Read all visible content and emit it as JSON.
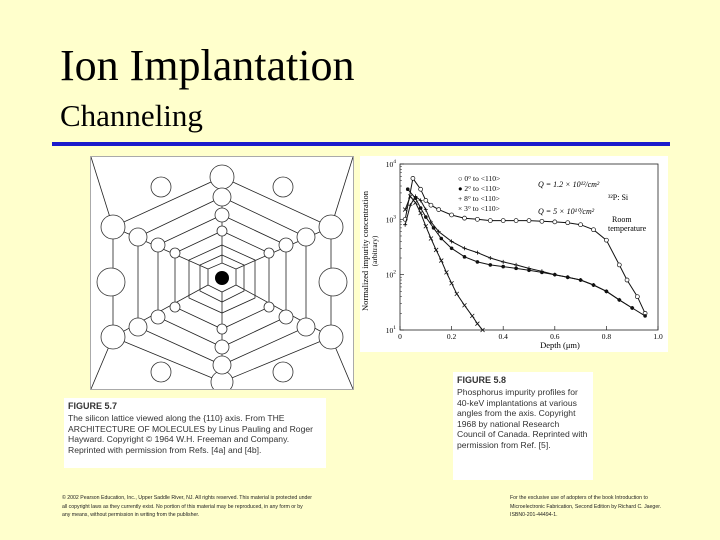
{
  "slide": {
    "title": "Ion Implantation",
    "subtitle": "Channeling"
  },
  "figure57": {
    "heading": "FIGURE 5.7",
    "caption": "The silicon lattice viewed along the {110} axis. From THE ARCHITECTURE OF MOLECULES by Linus Pauling and Roger Hayward. Copyright © 1964 W.H. Freeman and Company. Reprinted with permission from Refs. [4a] and [4b]."
  },
  "figure58": {
    "heading": "FIGURE 5.8",
    "caption": "Phosphorus impurity profiles for 40-keV implantations at various angles from the axis. Copyright 1968 by national Research Council of Canada. Reprinted with permission from Ref. [5]."
  },
  "footer": {
    "left": "© 2002 Pearson Education, Inc., Upper Saddle River, NJ. All rights reserved. This material is protected under all copyright laws as they currently exist. No portion of this material may be reproduced, in any form or by any means, without permission in writing from the publisher.",
    "right": "For the exclusive use of adopters of the book Introduction to Microelectronic Fabrication, Second Edition by Richard C. Jaeger. ISBN0-201-44494-1."
  },
  "chart_data": {
    "type": "line",
    "title": "",
    "xlabel": "Depth (μm)",
    "ylabel": "Normalized impurity concentration",
    "ylabel_units": "(arbitrary)",
    "xlim": [
      0,
      1.0
    ],
    "ylim_log10": [
      1,
      4
    ],
    "x_ticks": [
      "0",
      "0.2",
      "0.4",
      "0.6",
      "0.8",
      "1.0"
    ],
    "y_ticks": [
      {
        "base": "10",
        "exp": "4"
      },
      {
        "base": "10",
        "exp": "3"
      },
      {
        "base": "10",
        "exp": "2"
      },
      {
        "base": "10",
        "exp": "1"
      }
    ],
    "legend": [
      {
        "marker": "○",
        "text": "0° to <110>"
      },
      {
        "marker": "●",
        "text": "2° to <110>"
      },
      {
        "marker": "+",
        "text": "8° to <110>"
      },
      {
        "marker": "×",
        "text": "3° to <110>"
      }
    ],
    "annotations": {
      "dose_high": "Q = 1.2 × 10¹²/cm²",
      "dose_low": "Q = 5 × 10¹⁰/cm²",
      "species": "³²P: Si",
      "temp_line1": "Room",
      "temp_line2": "temperature"
    },
    "series": [
      {
        "name": "0° to <110>",
        "marker": "circle-open",
        "x": [
          0.02,
          0.05,
          0.08,
          0.1,
          0.12,
          0.15,
          0.2,
          0.25,
          0.3,
          0.35,
          0.4,
          0.45,
          0.5,
          0.55,
          0.6,
          0.65,
          0.7,
          0.75,
          0.8,
          0.85,
          0.88,
          0.92,
          0.95
        ],
        "y": [
          1000,
          5500,
          3500,
          2200,
          1800,
          1500,
          1200,
          1050,
          1000,
          950,
          950,
          950,
          950,
          920,
          900,
          870,
          800,
          650,
          420,
          150,
          80,
          40,
          20
        ]
      },
      {
        "name": "2° to <110>",
        "marker": "circle-filled",
        "x": [
          0.03,
          0.06,
          0.08,
          0.1,
          0.13,
          0.16,
          0.2,
          0.25,
          0.3,
          0.35,
          0.4,
          0.45,
          0.5,
          0.55,
          0.6,
          0.65,
          0.7,
          0.75,
          0.8,
          0.85,
          0.9,
          0.95
        ],
        "y": [
          3500,
          2400,
          1600,
          1100,
          700,
          450,
          300,
          210,
          170,
          150,
          140,
          130,
          120,
          110,
          100,
          90,
          80,
          65,
          50,
          35,
          25,
          18
        ]
      },
      {
        "name": "8° to <110>",
        "marker": "plus",
        "x": [
          0.02,
          0.04,
          0.06,
          0.08,
          0.1,
          0.12,
          0.15,
          0.2,
          0.25,
          0.3,
          0.35,
          0.4,
          0.45,
          0.5,
          0.55,
          0.6,
          0.65,
          0.7,
          0.75,
          0.8,
          0.85,
          0.9
        ],
        "y": [
          800,
          1800,
          2600,
          2200,
          1500,
          900,
          600,
          400,
          300,
          250,
          200,
          170,
          150,
          130,
          115,
          100,
          90,
          80,
          65,
          50,
          35,
          25
        ]
      },
      {
        "name": "3° to <110>",
        "marker": "cross",
        "x": [
          0.02,
          0.04,
          0.06,
          0.08,
          0.1,
          0.12,
          0.14,
          0.16,
          0.18,
          0.2,
          0.22,
          0.25,
          0.28,
          0.3,
          0.32
        ],
        "y": [
          1500,
          2600,
          2000,
          1300,
          750,
          450,
          280,
          180,
          110,
          70,
          45,
          28,
          18,
          13,
          10
        ]
      }
    ]
  }
}
